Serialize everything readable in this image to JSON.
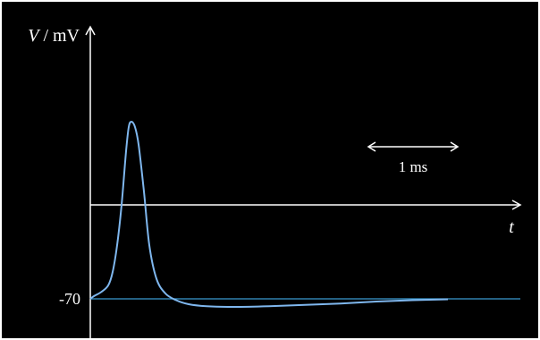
{
  "chart_data": {
    "type": "line",
    "title": "",
    "ylabel_var": "V",
    "ylabel_unit": " / mV",
    "xlabel": "t",
    "y_tick_labels": [
      "-70"
    ],
    "scale_bar": {
      "label": "1 ms",
      "duration_ms": 1
    },
    "series": [
      {
        "points": [
          [
            0.0,
            -70
          ],
          [
            0.02,
            -68
          ],
          [
            0.06,
            -65
          ],
          [
            0.1,
            -60
          ],
          [
            0.125,
            -50
          ],
          [
            0.15,
            -30
          ],
          [
            0.175,
            0
          ],
          [
            0.2,
            40
          ],
          [
            0.215,
            58
          ],
          [
            0.23,
            62
          ],
          [
            0.25,
            58
          ],
          [
            0.27,
            45
          ],
          [
            0.3,
            10
          ],
          [
            0.33,
            -30
          ],
          [
            0.37,
            -55
          ],
          [
            0.42,
            -66
          ],
          [
            0.48,
            -71
          ],
          [
            0.55,
            -74
          ],
          [
            0.65,
            -75.5
          ],
          [
            0.8,
            -76
          ],
          [
            1.0,
            -75.5
          ],
          [
            1.2,
            -74.5
          ],
          [
            1.4,
            -73.5
          ],
          [
            1.6,
            -72
          ],
          [
            1.8,
            -71
          ],
          [
            2.0,
            -70.3
          ]
        ],
        "color": "#7fb7ee"
      }
    ],
    "baseline": {
      "y": -70,
      "color": "#3a9ad0"
    },
    "zero_line_y": 0,
    "xlim": [
      0,
      2.5
    ],
    "ylim": [
      -85,
      80
    ],
    "grid": false,
    "axis_color": "#ffffff",
    "background": "#000000"
  }
}
